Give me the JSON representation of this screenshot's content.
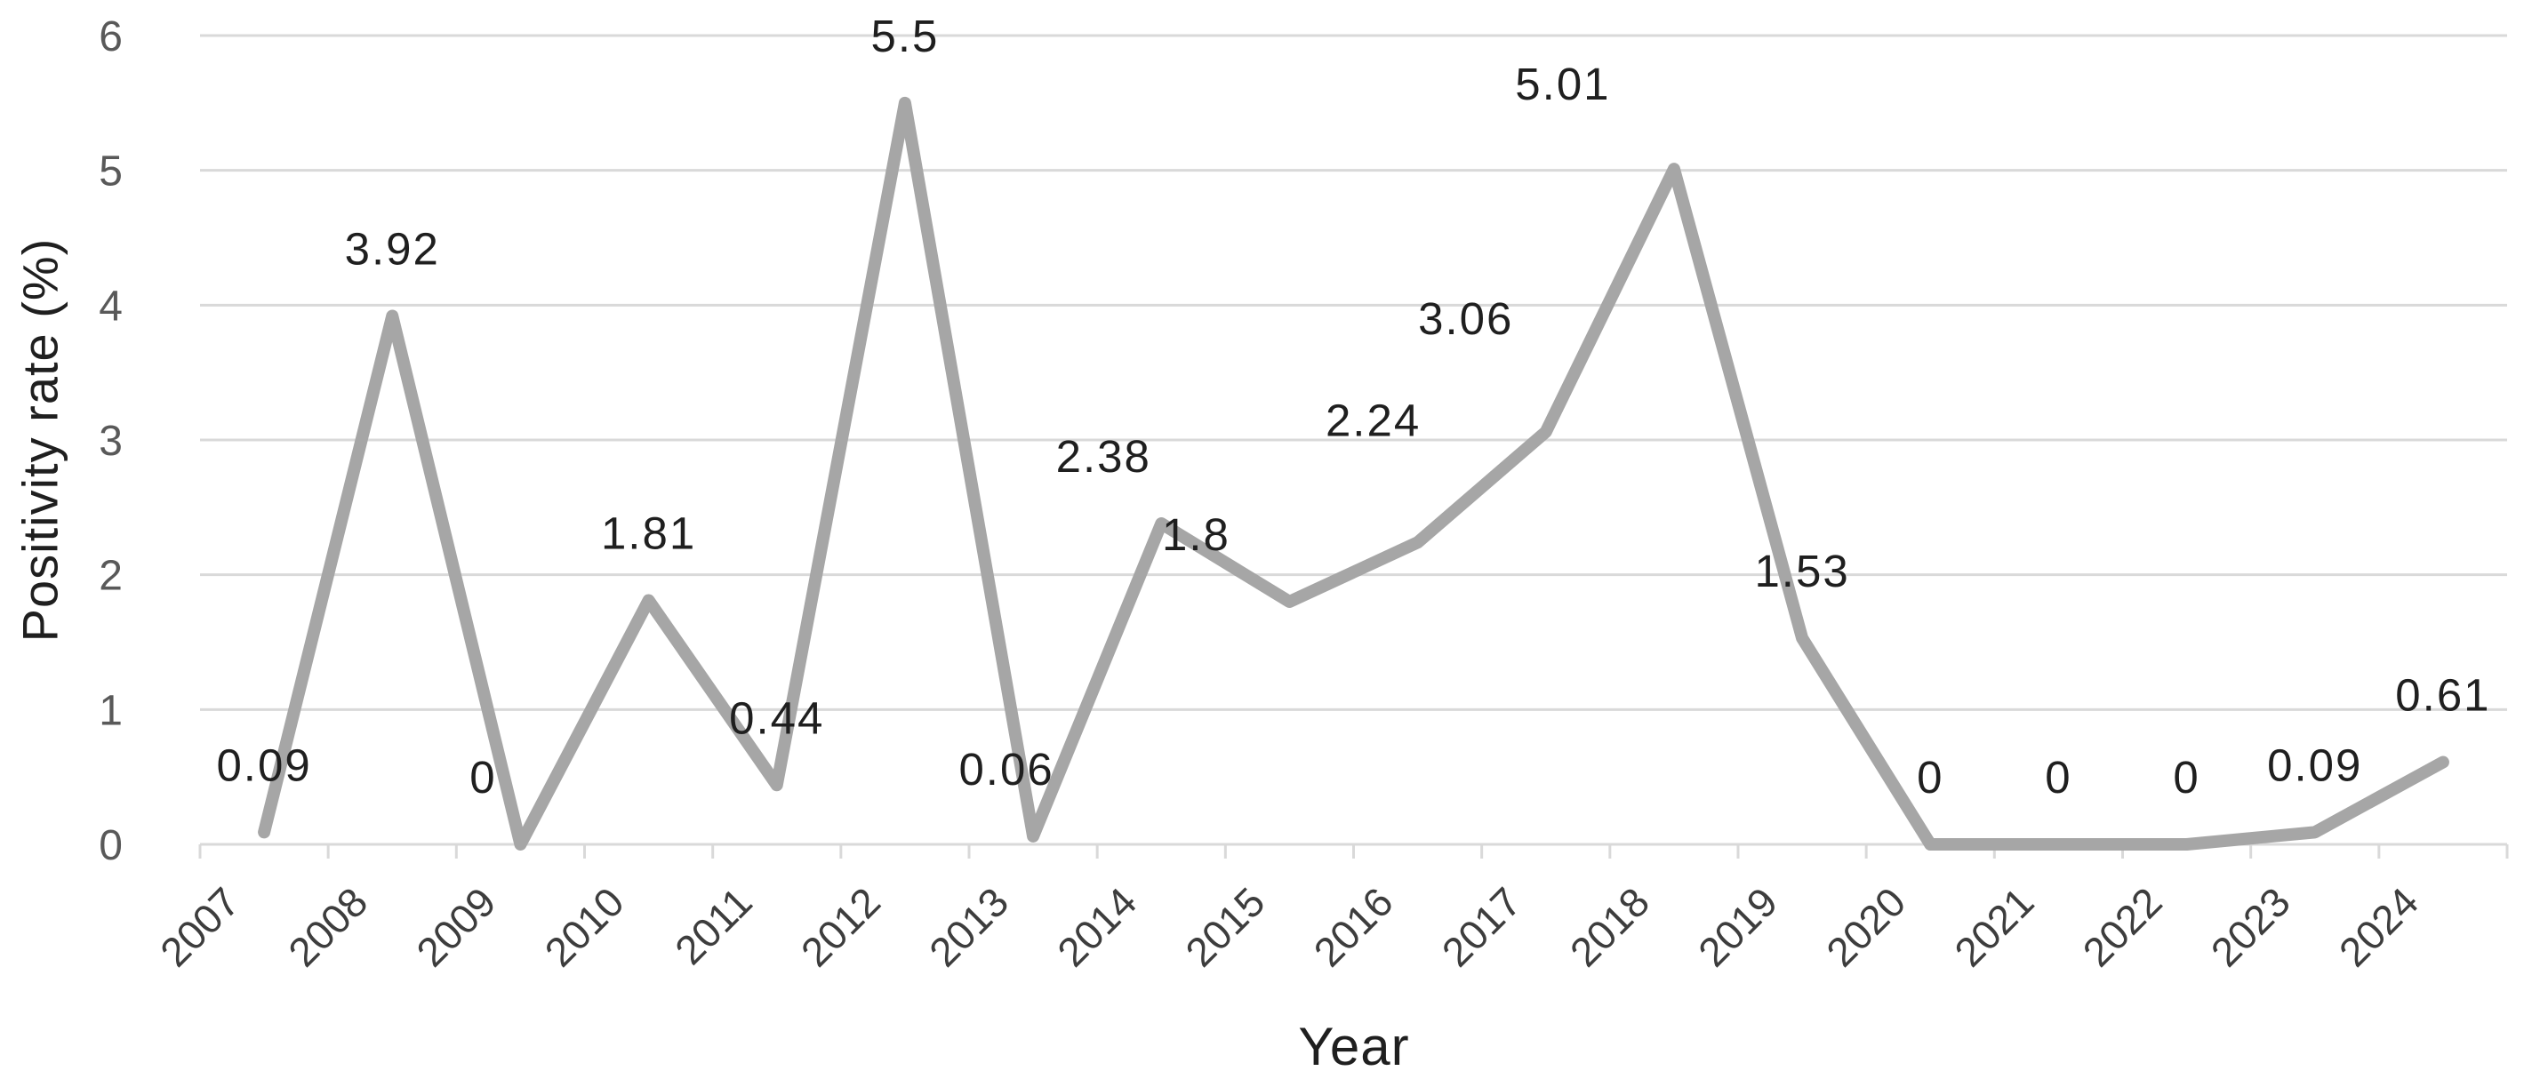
{
  "chart": {
    "y_axis_title": "Positivity rate (%)",
    "x_axis_title": "Year"
  },
  "chart_data": {
    "type": "line",
    "title": "",
    "categories": [
      "2007",
      "2008",
      "2009",
      "2010",
      "2011",
      "2012",
      "2013",
      "2014",
      "2015",
      "2016",
      "2017",
      "2018",
      "2019",
      "2020",
      "2021",
      "2022",
      "2023",
      "2024"
    ],
    "series": [
      {
        "name": "Positivity rate (%)",
        "values": [
          0.09,
          3.92,
          0,
          1.81,
          0.44,
          5.5,
          0.06,
          2.38,
          1.8,
          2.24,
          3.06,
          5.01,
          1.53,
          0,
          0,
          0,
          0.09,
          0.61
        ]
      }
    ],
    "data_labels": [
      "0.09",
      "3.92",
      "0",
      "1.81",
      "0.44",
      "5.5",
      "0.06",
      "2.38",
      "1.8",
      "2.24",
      "3.06",
      "5.01",
      "1.53",
      "0",
      "0",
      "0",
      "0.09",
      "0.61"
    ],
    "xlabel": "Year",
    "ylabel": "Positivity rate (%)",
    "ylim": [
      0,
      6
    ],
    "yticks": [
      0,
      1,
      2,
      3,
      4,
      5,
      6
    ],
    "grid": "horizontal-only",
    "legend_position": "none",
    "x_tick_rotation_deg": -45,
    "line_color": "#a6a6a6",
    "gridline_color": "#d9d9d9",
    "axis_line_color": "#d9d9d9",
    "y_tick_label_color": "#595959",
    "x_tick_label_color": "#3d3d3d",
    "data_label_color": "#1f1f1f",
    "background_color": "#ffffff"
  }
}
